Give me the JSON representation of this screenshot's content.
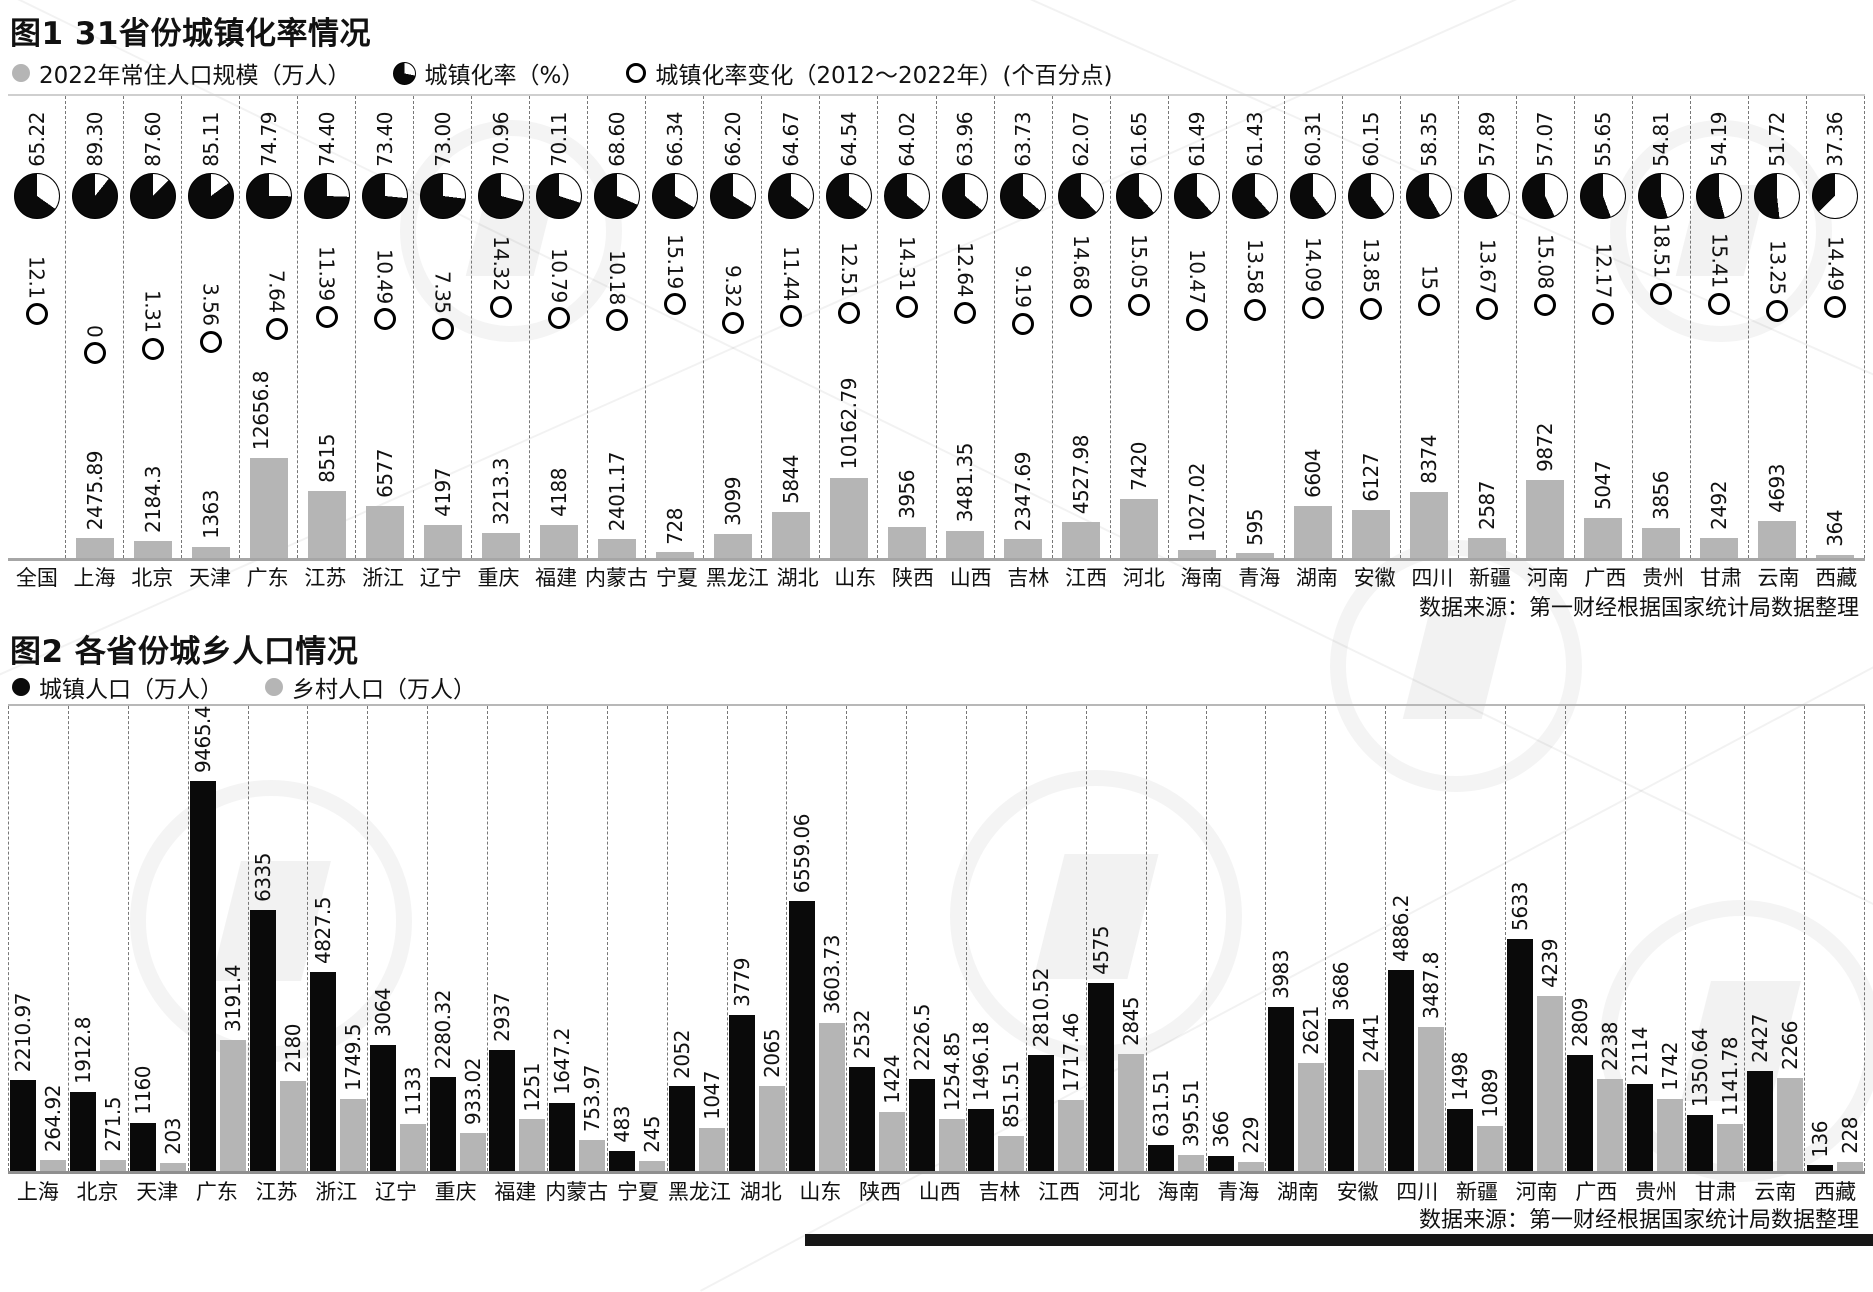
{
  "chart_data": [
    {
      "id": "fig1",
      "type": "bar",
      "title": "图1 31省份城镇化率情况",
      "legend": [
        "2022年常住人口规模（万人）",
        "城镇化率（%）",
        "城镇化率变化（2012～2022年）(个百分点)"
      ],
      "source": "数据来源：第一财经根据国家统计局数据整理",
      "layout": {
        "grid": false,
        "legend_position": "top",
        "column_separators": "dashed",
        "value_labels": "rotated-vertical"
      },
      "categories": [
        "全国",
        "上海",
        "北京",
        "天津",
        "广东",
        "江苏",
        "浙江",
        "辽宁",
        "重庆",
        "福建",
        "内蒙古",
        "宁夏",
        "黑龙江",
        "湖北",
        "山东",
        "陕西",
        "山西",
        "吉林",
        "江西",
        "河北",
        "海南",
        "青海",
        "湖南",
        "安徽",
        "四川",
        "新疆",
        "河南",
        "广西",
        "贵州",
        "甘肃",
        "云南",
        "西藏"
      ],
      "series": [
        {
          "name": "2022年常住人口规模（万人）",
          "type": "bar",
          "color": "#b5b5b5",
          "values": [
            null,
            "2475.89",
            "2184.3",
            "1363",
            "12656.8",
            "8515",
            "6577",
            "4197",
            "3213.3",
            "4188",
            "2401.17",
            "728",
            "3099",
            "5844",
            "10162.79",
            "3956",
            "3481.35",
            "2347.69",
            "4527.98",
            "7420",
            "1027.02",
            "595",
            "6604",
            "6127",
            "8374",
            "2587",
            "9872",
            "5047",
            "3856",
            "2492",
            "4693",
            "364"
          ]
        },
        {
          "name": "城镇化率（%）",
          "type": "pie",
          "color": "#0a0a0a",
          "values": [
            "65.22",
            "89.30",
            "87.60",
            "85.11",
            "74.79",
            "74.40",
            "73.40",
            "73.00",
            "70.96",
            "70.11",
            "68.60",
            "66.34",
            "66.20",
            "64.67",
            "64.54",
            "64.02",
            "63.96",
            "63.73",
            "62.07",
            "61.65",
            "61.49",
            "61.43",
            "60.31",
            "60.15",
            "58.35",
            "57.89",
            "57.07",
            "55.65",
            "54.81",
            "54.19",
            "51.72",
            "37.36"
          ]
        },
        {
          "name": "城镇化率变化（2012～2022年）(个百分点)",
          "type": "point",
          "color": "#000000",
          "values": [
            "12.1",
            "0",
            "1.31",
            "3.56",
            "7.64",
            "11.39",
            "10.49",
            "7.35",
            "14.32",
            "10.79",
            "10.18",
            "15.19",
            "9.32",
            "11.44",
            "12.51",
            "14.31",
            "12.64",
            "9.19",
            "14.68",
            "15.05",
            "10.47",
            "13.58",
            "14.09",
            "13.85",
            "15",
            "13.67",
            "15.08",
            "12.17",
            "18.51",
            "15.41",
            "13.25",
            "14.49"
          ]
        }
      ]
    },
    {
      "id": "fig2",
      "type": "bar",
      "title": "图2 各省份城乡人口情况",
      "legend": [
        "城镇人口（万人）",
        "乡村人口（万人）"
      ],
      "source": "数据来源：第一财经根据国家统计局数据整理",
      "layout": {
        "grid": false,
        "legend_position": "top",
        "column_separators": "dashed",
        "value_labels": "rotated-vertical",
        "bar_grouping": "paired"
      },
      "categories": [
        "上海",
        "北京",
        "天津",
        "广东",
        "江苏",
        "浙江",
        "辽宁",
        "重庆",
        "福建",
        "内蒙古",
        "宁夏",
        "黑龙江",
        "湖北",
        "山东",
        "陕西",
        "山西",
        "吉林",
        "江西",
        "河北",
        "海南",
        "青海",
        "湖南",
        "安徽",
        "四川",
        "新疆",
        "河南",
        "广西",
        "贵州",
        "甘肃",
        "云南",
        "西藏"
      ],
      "series": [
        {
          "name": "城镇人口（万人）",
          "type": "bar",
          "color": "#0a0a0a",
          "values": [
            "2210.97",
            "1912.8",
            "1160",
            "9465.4",
            "6335",
            "4827.5",
            "3064",
            "2280.32",
            "2937",
            "1647.2",
            "483",
            "2052",
            "3779",
            "6559.06",
            "2532",
            "2226.5",
            "1496.18",
            "2810.52",
            "4575",
            "631.51",
            "366",
            "3983",
            "3686",
            "4886.2",
            "1498",
            "5633",
            "2809",
            "2114",
            "1350.64",
            "2427",
            "136"
          ]
        },
        {
          "name": "乡村人口（万人）",
          "type": "bar",
          "color": "#b5b5b5",
          "values": [
            "264.92",
            "271.5",
            "203",
            "3191.4",
            "2180",
            "1749.5",
            "1133",
            "933.02",
            "1251",
            "753.97",
            "245",
            "1047",
            "2065",
            "3603.73",
            "1424",
            "1254.85",
            "851.51",
            "1717.46",
            "2845",
            "395.51",
            "229",
            "2621",
            "2441",
            "3487.8",
            "1089",
            "4239",
            "2238",
            "1742",
            "1141.78",
            "2266",
            "228"
          ]
        }
      ]
    }
  ]
}
